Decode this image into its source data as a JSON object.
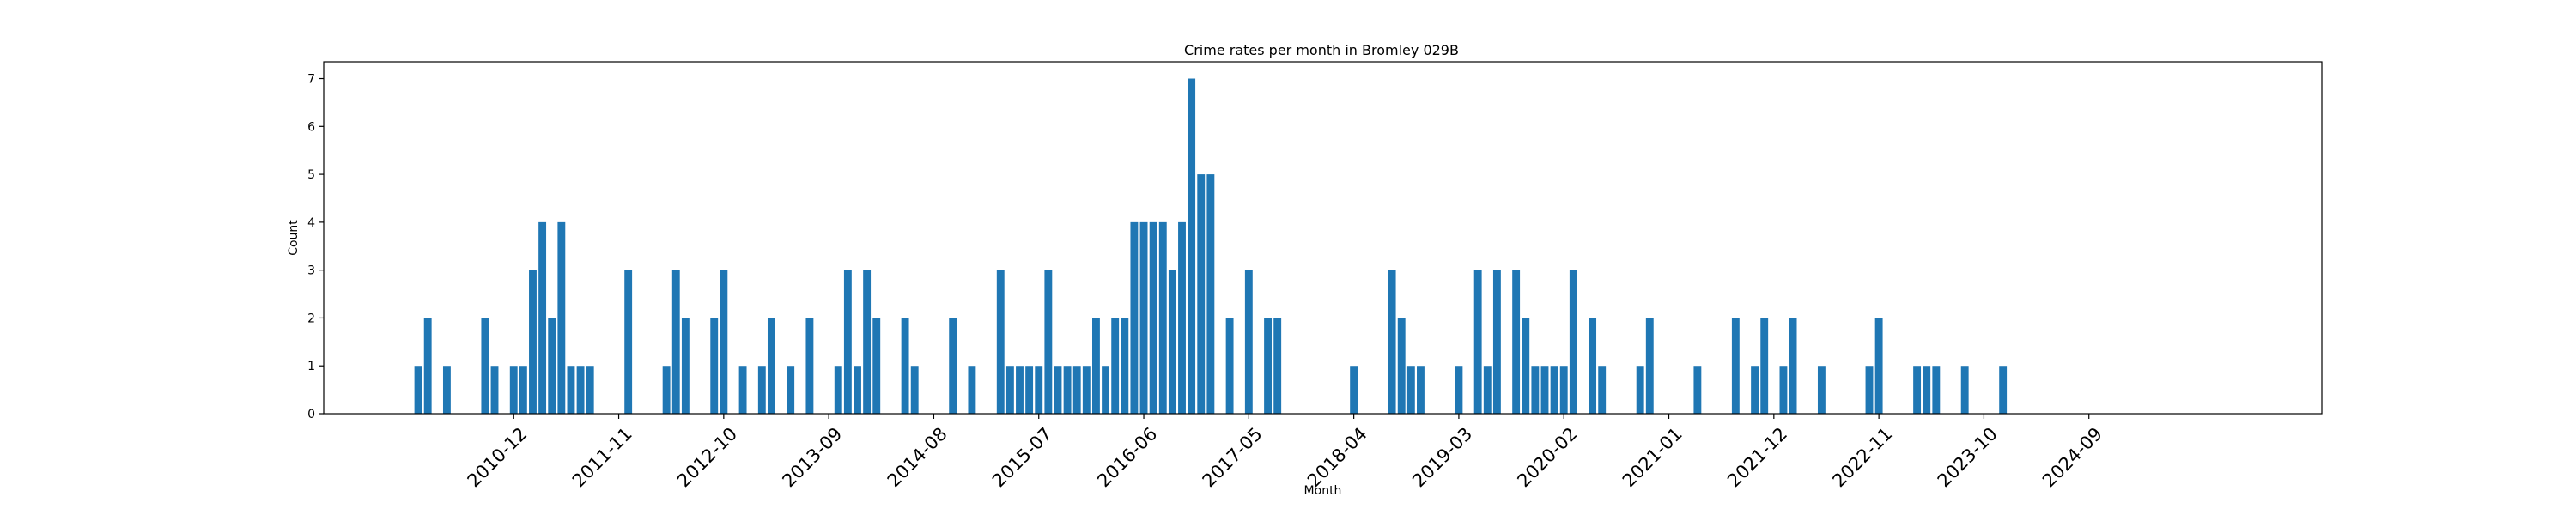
{
  "chart_data": {
    "type": "bar",
    "title": "Crime rates per month in Bromley 029B",
    "xlabel": "Month",
    "ylabel": "Count",
    "ylim": [
      0,
      7.35
    ],
    "yticks": [
      0,
      1,
      2,
      3,
      4,
      5,
      6,
      7
    ],
    "xlim": [
      -19.9,
      189.4
    ],
    "xticks": [
      {
        "pos": 0,
        "label": "2010-12"
      },
      {
        "pos": 11,
        "label": "2011-11"
      },
      {
        "pos": 22,
        "label": "2012-10"
      },
      {
        "pos": 33,
        "label": "2013-09"
      },
      {
        "pos": 44,
        "label": "2014-08"
      },
      {
        "pos": 55,
        "label": "2015-07"
      },
      {
        "pos": 66,
        "label": "2016-06"
      },
      {
        "pos": 77,
        "label": "2017-05"
      },
      {
        "pos": 88,
        "label": "2018-04"
      },
      {
        "pos": 99,
        "label": "2019-03"
      },
      {
        "pos": 110,
        "label": "2020-02"
      },
      {
        "pos": 121,
        "label": "2021-01"
      },
      {
        "pos": 132,
        "label": "2021-12"
      },
      {
        "pos": 143,
        "label": "2022-11"
      },
      {
        "pos": 154,
        "label": "2023-10"
      },
      {
        "pos": 165,
        "label": "2024-09"
      }
    ],
    "grid": false,
    "bar_color": "#1f77b4",
    "series": [
      {
        "x": [
          -10,
          -9,
          -7,
          -3,
          -2,
          0,
          1,
          2,
          3,
          4,
          5,
          6,
          7,
          8,
          12,
          16,
          17,
          18,
          21,
          22,
          24,
          26,
          27,
          29,
          31,
          34,
          35,
          36,
          37,
          38,
          41,
          42,
          46,
          48,
          51,
          52,
          53,
          54,
          55,
          56,
          57,
          58,
          59,
          60,
          61,
          62,
          63,
          64,
          65,
          66,
          67,
          68,
          69,
          70,
          71,
          72,
          73,
          75,
          77,
          79,
          80,
          88,
          92,
          93,
          94,
          95,
          99,
          101,
          102,
          103,
          105,
          106,
          107,
          108,
          109,
          110,
          111,
          113,
          114,
          118,
          119,
          124,
          128,
          130,
          131,
          133,
          134,
          137,
          142,
          143,
          147,
          148,
          149,
          152,
          156
        ],
        "values": [
          1,
          2,
          1,
          2,
          1,
          1,
          1,
          3,
          4,
          2,
          4,
          1,
          1,
          1,
          3,
          1,
          3,
          2,
          2,
          3,
          1,
          1,
          2,
          1,
          2,
          1,
          3,
          1,
          3,
          2,
          2,
          1,
          2,
          1,
          3,
          1,
          1,
          1,
          1,
          3,
          1,
          1,
          1,
          1,
          2,
          1,
          2,
          2,
          4,
          4,
          4,
          4,
          3,
          4,
          7,
          5,
          5,
          2,
          3,
          2,
          2,
          1,
          3,
          2,
          1,
          1,
          1,
          3,
          1,
          3,
          3,
          2,
          1,
          1,
          1,
          1,
          3,
          2,
          1,
          1,
          2,
          1,
          2,
          1,
          2,
          1,
          2,
          1,
          1,
          2,
          1,
          1,
          1,
          1,
          1
        ]
      }
    ]
  }
}
